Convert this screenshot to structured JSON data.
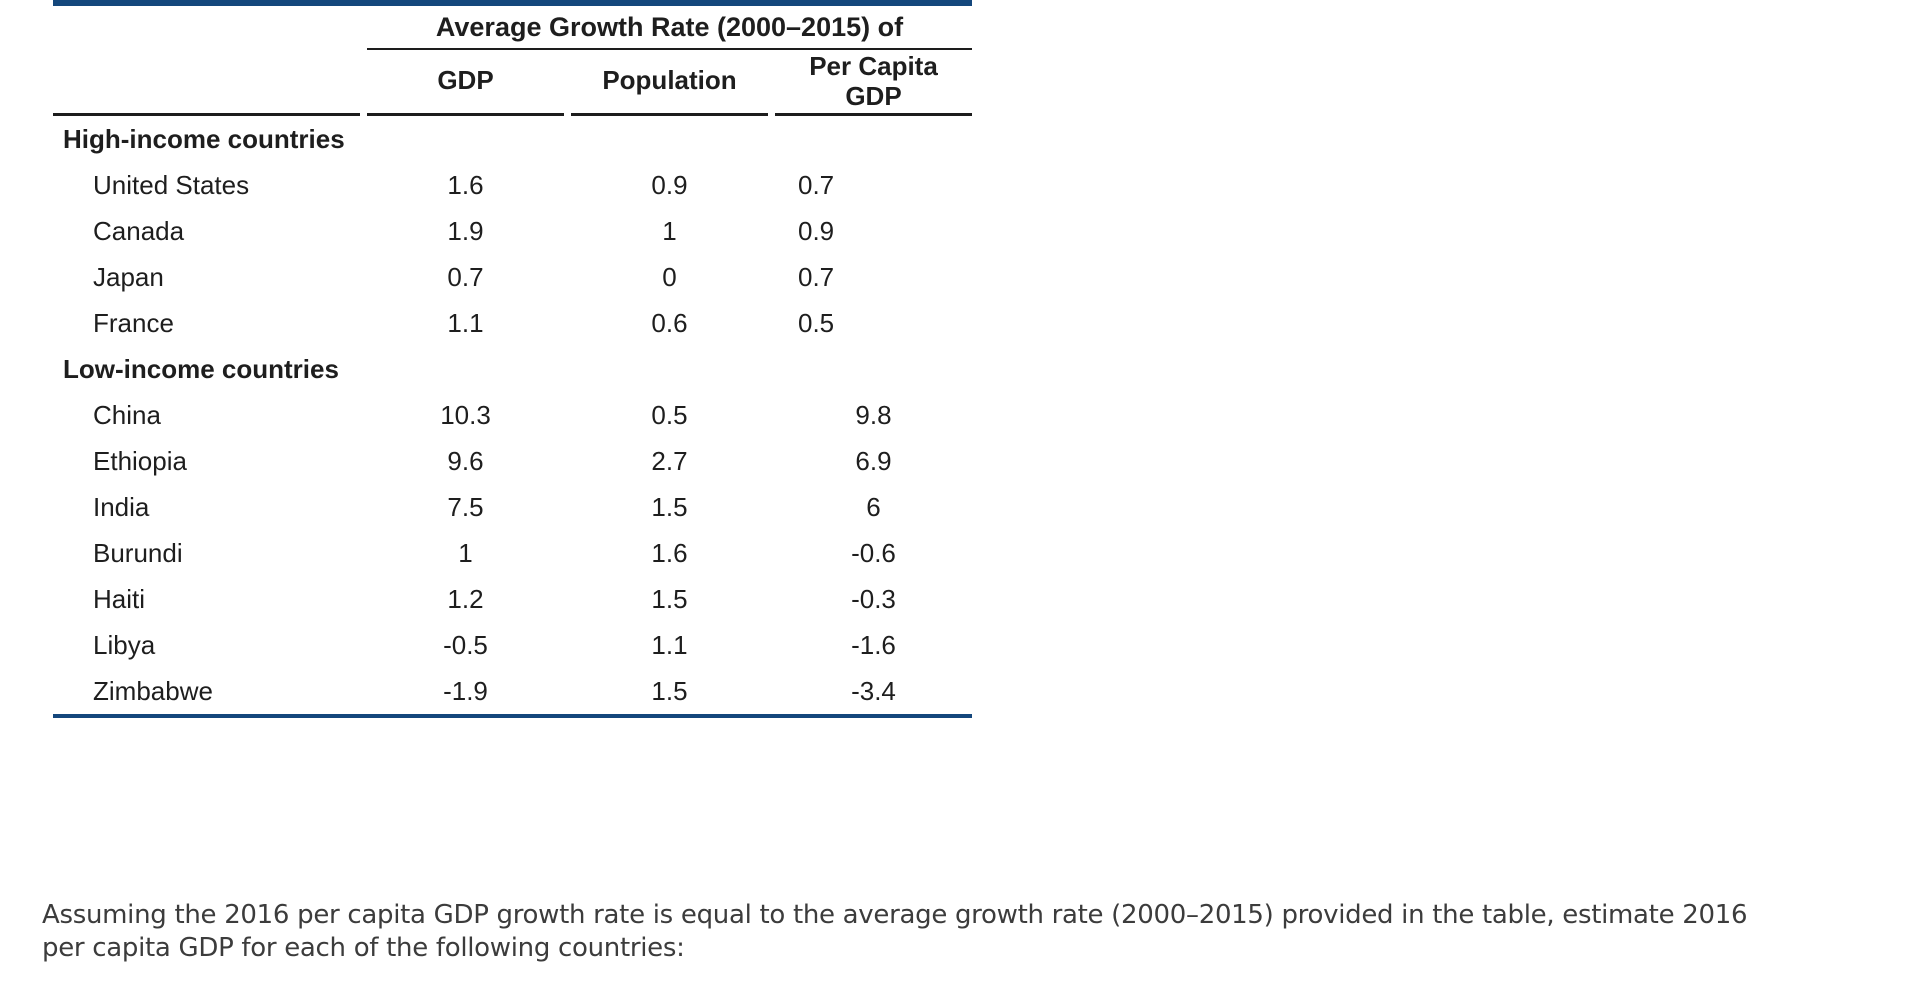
{
  "colors": {
    "navy_rule": "#14477c",
    "black_rule": "#1d1d1d",
    "table_text": "#1e1e1e",
    "question_text": "#3c3c3c"
  },
  "table": {
    "spanner": "Average Growth Rate (2000–2015) of",
    "columns": {
      "gdp": "GDP",
      "population": "Population",
      "per_capita_line1": "Per Capita",
      "per_capita_line2": "GDP"
    },
    "groups": [
      {
        "label": "High-income countries",
        "per_capita_align": "left",
        "rows": [
          {
            "name": "United States",
            "gdp": "1.6",
            "population": "0.9",
            "per_capita": "0.7"
          },
          {
            "name": "Canada",
            "gdp": "1.9",
            "population": "1",
            "per_capita": "0.9"
          },
          {
            "name": "Japan",
            "gdp": "0.7",
            "population": "0",
            "per_capita": "0.7"
          },
          {
            "name": "France",
            "gdp": "1.1",
            "population": "0.6",
            "per_capita": "0.5"
          }
        ]
      },
      {
        "label": "Low-income countries",
        "per_capita_align": "center",
        "rows": [
          {
            "name": "China",
            "gdp": "10.3",
            "population": "0.5",
            "per_capita": "9.8"
          },
          {
            "name": "Ethiopia",
            "gdp": "9.6",
            "population": "2.7",
            "per_capita": "6.9"
          },
          {
            "name": "India",
            "gdp": "7.5",
            "population": "1.5",
            "per_capita": "6"
          },
          {
            "name": "Burundi",
            "gdp": "1",
            "population": "1.6",
            "per_capita": "-0.6"
          },
          {
            "name": "Haiti",
            "gdp": "1.2",
            "population": "1.5",
            "per_capita": "-0.3"
          },
          {
            "name": "Libya",
            "gdp": "-0.5",
            "population": "1.1",
            "per_capita": "-1.6"
          },
          {
            "name": "Zimbabwe",
            "gdp": "-1.9",
            "population": "1.5",
            "per_capita": "-3.4"
          }
        ]
      }
    ]
  },
  "question": {
    "lines": [
      "Assuming the 2016 per capita GDP growth rate is equal to the average growth rate (2000–2015) provided in the table, estimate 2016",
      "per capita GDP for each of the following countries:"
    ]
  }
}
